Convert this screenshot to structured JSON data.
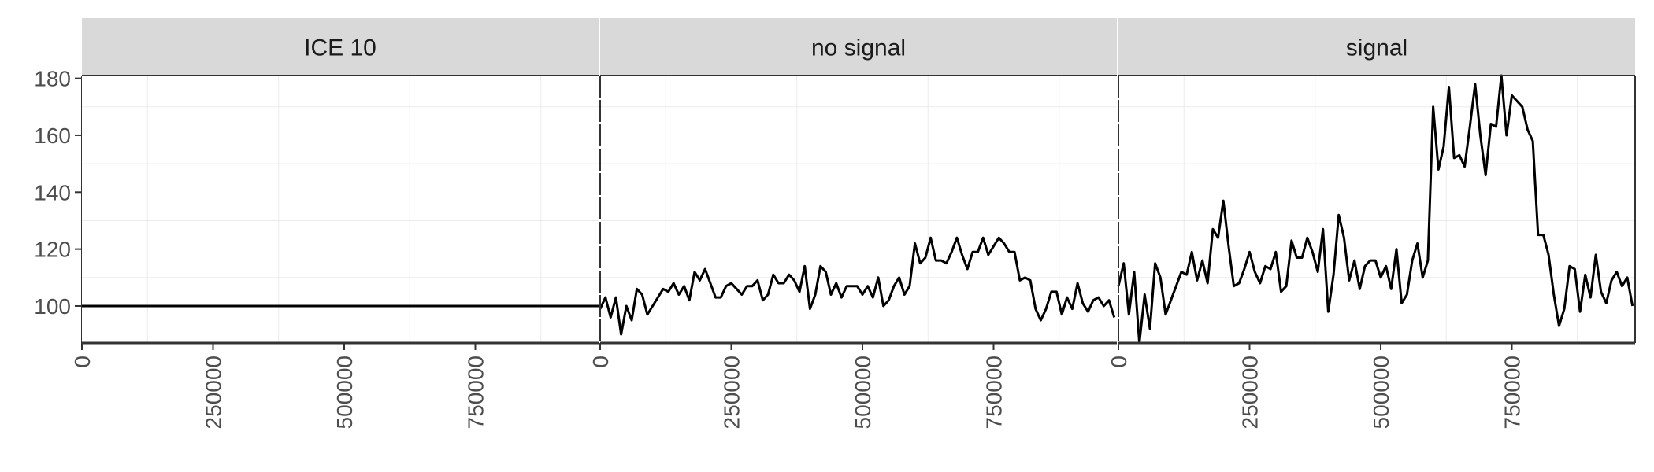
{
  "chart_data": {
    "type": "line",
    "layout": "faceted-3-panels",
    "background": "#ffffff",
    "strip_fill": "#d9d9d9",
    "line_color": "#000000",
    "grid": "white-minor-grid",
    "legend": "none",
    "title": "",
    "xlabel": "",
    "ylabel": "",
    "xlim": [
      0,
      985000
    ],
    "ylim": [
      87,
      181
    ],
    "x_tick_values": [
      0,
      250000,
      500000,
      750000
    ],
    "x_tick_labels": [
      "0",
      "250000",
      "500000",
      "750000"
    ],
    "y_tick_values": [
      100,
      120,
      140,
      160,
      180
    ],
    "y_tick_labels": [
      "100",
      "120",
      "140",
      "160",
      "180"
    ],
    "panels": [
      {
        "strip": "ICE 10",
        "x": [
          0,
          985000
        ],
        "y": [
          100,
          100
        ]
      },
      {
        "strip": "no signal",
        "x": [
          0,
          10000,
          20000,
          30000,
          40000,
          50000,
          60000,
          70000,
          80000,
          90000,
          100000,
          110000,
          120000,
          130000,
          140000,
          150000,
          160000,
          170000,
          180000,
          190000,
          200000,
          210000,
          220000,
          230000,
          240000,
          250000,
          260000,
          270000,
          280000,
          290000,
          300000,
          310000,
          320000,
          330000,
          340000,
          350000,
          360000,
          370000,
          380000,
          390000,
          400000,
          410000,
          420000,
          430000,
          440000,
          450000,
          460000,
          470000,
          480000,
          490000,
          500000,
          510000,
          520000,
          530000,
          540000,
          550000,
          560000,
          570000,
          580000,
          590000,
          600000,
          610000,
          620000,
          630000,
          640000,
          650000,
          660000,
          670000,
          680000,
          690000,
          700000,
          710000,
          720000,
          730000,
          740000,
          750000,
          760000,
          770000,
          780000,
          790000,
          800000,
          810000,
          820000,
          830000,
          840000,
          850000,
          860000,
          870000,
          880000,
          890000,
          900000,
          910000,
          920000,
          930000,
          940000,
          950000,
          960000,
          970000,
          980000
        ],
        "y": [
          99,
          103,
          96,
          103,
          90,
          100,
          95,
          106,
          104,
          97,
          100,
          103,
          106,
          105,
          108,
          104,
          107,
          102,
          112,
          109,
          113,
          108,
          103,
          103,
          107,
          108,
          106,
          104,
          107,
          107,
          109,
          102,
          104,
          111,
          108,
          108,
          111,
          109,
          105,
          114,
          99,
          104,
          114,
          112,
          104,
          108,
          103,
          107,
          107,
          107,
          104,
          107,
          103,
          110,
          100,
          102,
          107,
          110,
          104,
          107,
          122,
          115,
          117,
          124,
          116,
          116,
          115,
          119,
          124,
          118,
          113,
          119,
          119,
          124,
          118,
          121,
          124,
          122,
          119,
          119,
          109,
          110,
          109,
          99,
          95,
          99,
          105,
          105,
          97,
          103,
          99,
          108,
          101,
          98,
          102,
          103,
          100,
          102,
          96
        ]
      },
      {
        "strip": "signal",
        "x": [
          0,
          10000,
          20000,
          30000,
          40000,
          50000,
          60000,
          70000,
          80000,
          90000,
          100000,
          110000,
          120000,
          130000,
          140000,
          150000,
          160000,
          170000,
          180000,
          190000,
          200000,
          210000,
          220000,
          230000,
          240000,
          250000,
          260000,
          270000,
          280000,
          290000,
          300000,
          310000,
          320000,
          330000,
          340000,
          350000,
          360000,
          370000,
          380000,
          390000,
          400000,
          410000,
          420000,
          430000,
          440000,
          450000,
          460000,
          470000,
          480000,
          490000,
          500000,
          510000,
          520000,
          530000,
          540000,
          550000,
          560000,
          570000,
          580000,
          590000,
          600000,
          610000,
          620000,
          630000,
          640000,
          650000,
          660000,
          670000,
          680000,
          690000,
          700000,
          710000,
          720000,
          730000,
          740000,
          750000,
          760000,
          770000,
          780000,
          790000,
          800000,
          810000,
          820000,
          830000,
          840000,
          850000,
          860000,
          870000,
          880000,
          890000,
          900000,
          910000,
          920000,
          930000,
          940000,
          950000,
          960000,
          970000,
          980000
        ],
        "y": [
          107,
          115,
          97,
          112,
          87,
          104,
          92,
          115,
          110,
          97,
          102,
          107,
          112,
          111,
          119,
          109,
          116,
          108,
          127,
          124,
          137,
          121,
          107,
          108,
          113,
          119,
          112,
          108,
          114,
          113,
          119,
          105,
          107,
          123,
          117,
          117,
          124,
          119,
          112,
          127,
          98,
          111,
          132,
          124,
          109,
          116,
          106,
          114,
          116,
          116,
          110,
          114,
          106,
          120,
          101,
          104,
          116,
          122,
          110,
          116,
          170,
          148,
          156,
          177,
          152,
          153,
          149,
          163,
          178,
          160,
          146,
          164,
          163,
          181,
          160,
          174,
          172,
          170,
          162,
          158,
          125,
          125,
          118,
          104,
          93,
          99,
          114,
          113,
          98,
          111,
          103,
          118,
          105,
          101,
          109,
          112,
          107,
          110,
          100
        ]
      }
    ]
  }
}
